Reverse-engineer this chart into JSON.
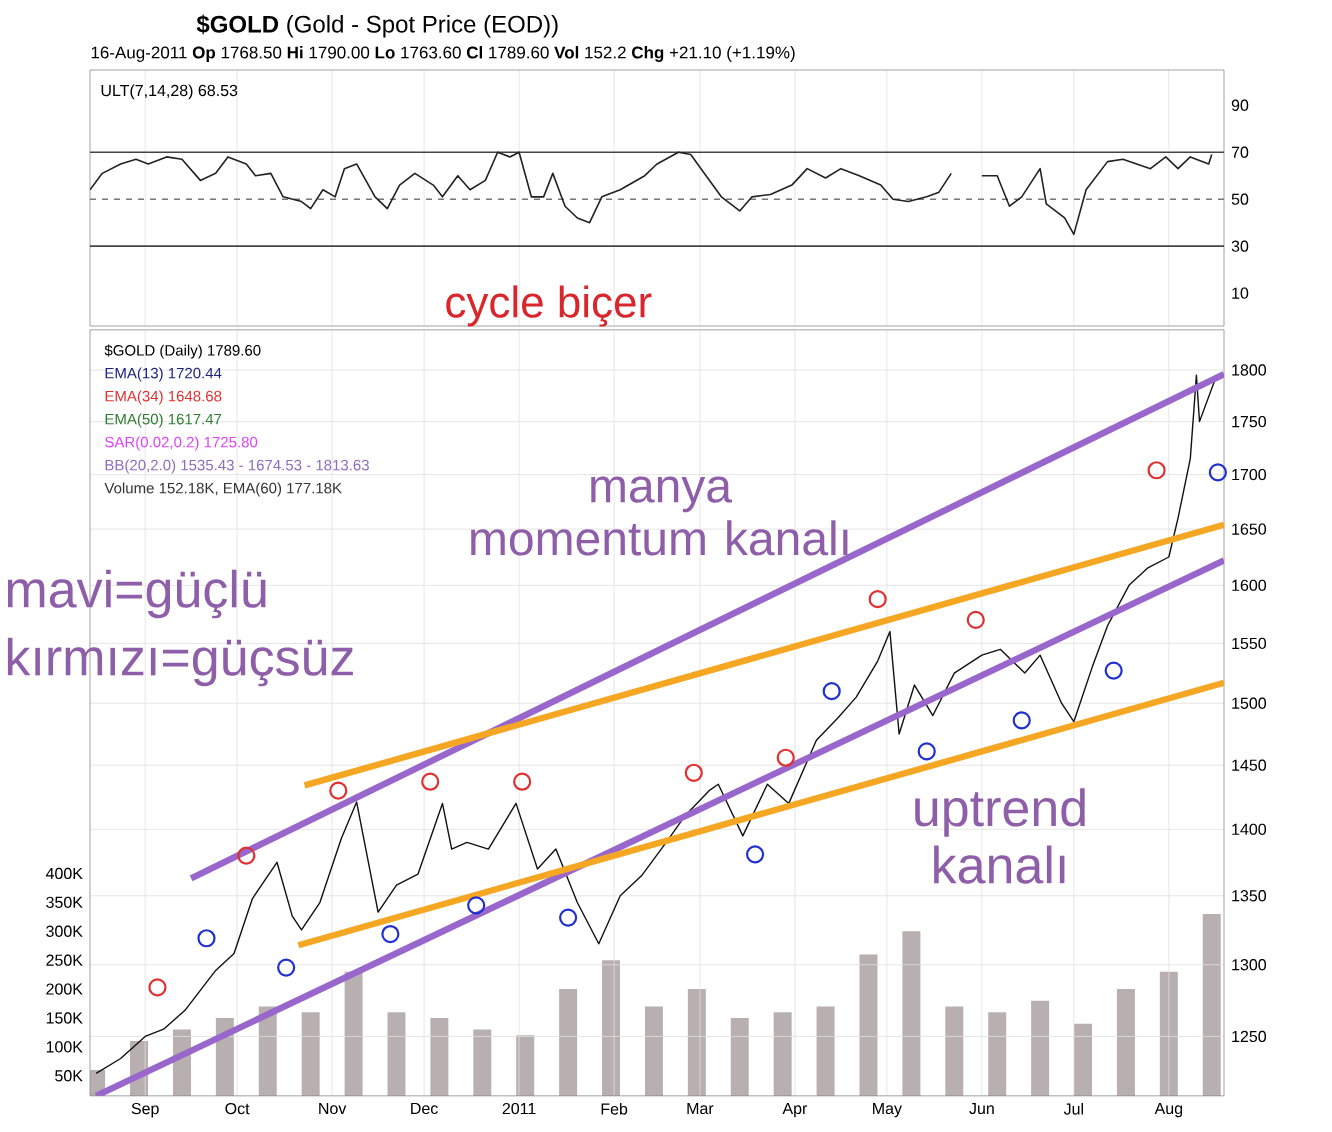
{
  "chart_data": [
    {
      "type": "line",
      "title": "**$GOLD** (Gold - Spot Price (EOD))",
      "subtitle": "16-Aug-2011   **Op** 1768.50  **Hi** 1790.00  **Lo** 1763.60  **Cl** 1789.60  **Vol** 152.2   **Chg** +21.10 (+1.19%)",
      "annotations": [
        "ULT(7,14,28) 68.53",
        "cycle biçer"
      ],
      "x": [
        "2010-08-14",
        "2010-08-18",
        "2010-08-24",
        "2010-08-29",
        "2010-09-02",
        "2010-09-08",
        "2010-09-13",
        "2010-09-19",
        "2010-09-24",
        "2010-09-28",
        "2010-10-04",
        "2010-10-07",
        "2010-10-12",
        "2010-10-16",
        "2010-10-22",
        "2010-10-25",
        "2010-10-29",
        "2010-11-02",
        "2010-11-05",
        "2010-11-09",
        "2010-11-15",
        "2010-11-19",
        "2010-11-23",
        "2010-11-28",
        "2010-12-04",
        "2010-12-07",
        "2010-12-12",
        "2010-12-16",
        "2010-12-21",
        "2010-12-25",
        "2010-12-29",
        "2011-01-01",
        "2011-01-05",
        "2011-01-09",
        "2011-01-12",
        "2011-01-16",
        "2011-01-20",
        "2011-01-24",
        "2011-01-28",
        "2011-02-03",
        "2011-02-11",
        "2011-02-15",
        "2011-02-22",
        "2011-02-26",
        "2011-03-03",
        "2011-03-08",
        "2011-03-14",
        "2011-03-18",
        "2011-03-24",
        "2011-03-31",
        "2011-04-05",
        "2011-04-11",
        "2011-04-16",
        "2011-04-22",
        "2011-04-29",
        "2011-05-03",
        "2011-05-08",
        "2011-05-14",
        "2011-05-18",
        "2011-05-22",
        "2011-05-27",
        "2011-06-01",
        "2011-06-06",
        "2011-06-10",
        "2011-06-14",
        "2011-06-20",
        "2011-06-22",
        "2011-06-28",
        "2011-07-01",
        "2011-07-05",
        "2011-07-12",
        "2011-07-17",
        "2011-07-26",
        "2011-07-31",
        "2011-08-04",
        "2011-08-08",
        "2011-08-14",
        "2011-08-15"
      ],
      "series": [
        {
          "color": "#222222",
          "values": [
            54,
            61,
            65,
            67,
            65,
            68,
            67,
            58,
            61,
            68,
            65,
            60,
            61,
            51,
            49,
            46,
            54,
            51,
            63,
            65,
            51,
            46,
            56,
            61,
            56,
            51,
            60,
            54,
            58,
            70,
            68,
            70,
            51,
            51,
            61,
            47,
            42,
            40,
            51,
            54,
            60,
            65,
            70,
            69,
            60,
            51,
            45,
            51,
            52,
            56,
            63,
            59,
            63,
            60,
            56,
            50,
            49,
            51,
            53,
            61,
            null,
            60,
            60,
            47,
            51,
            63,
            48,
            42,
            35,
            54,
            66,
            67,
            63,
            68,
            63,
            68,
            65,
            69
          ]
        }
      ],
      "xlim": [
        "2010-08-14",
        "2011-08-19"
      ],
      "xticks": [
        {
          "value": "2010-09-01",
          "label": null
        },
        {
          "value": "2010-10-01",
          "label": null
        },
        {
          "value": "2010-11-01",
          "label": null
        },
        {
          "value": "2010-12-01",
          "label": null
        },
        {
          "value": "2011-01-01",
          "label": null
        },
        {
          "value": "2011-02-01",
          "label": null
        },
        {
          "value": "2011-03-01",
          "label": null
        },
        {
          "value": "2011-04-01",
          "label": null
        },
        {
          "value": "2011-05-01",
          "label": null
        },
        {
          "value": "2011-06-01",
          "label": null
        },
        {
          "value": "2011-07-01",
          "label": null
        },
        {
          "value": "2011-08-01",
          "label": null
        }
      ],
      "ylim": [
        -4,
        105
      ],
      "yticks": [
        10,
        30,
        50,
        70,
        90
      ],
      "ref_lines": [
        {
          "axis": "y",
          "value": 70,
          "color": "#444444",
          "line_style": "solid"
        },
        {
          "axis": "y",
          "value": 50,
          "color": "#777777",
          "line_style": "dashed"
        },
        {
          "axis": "y",
          "value": 30,
          "color": "#444444",
          "line_style": "solid"
        }
      ],
      "grid": "x",
      "tick_labels": "y"
    },
    {
      "type": "line",
      "log": "y",
      "grid": true,
      "annotations": [
        "$GOLD (Daily) 1789.60",
        "EMA(13) 1720.44",
        "EMA(34) 1648.68",
        "EMA(50) 1617.47",
        "SAR(0.02,0.2) 1725.80",
        "BB(20,2.0) 1535.43 - 1674.53 - 1813.63",
        "Volume 152.18K, EMA(60) 177.18K",
        "mavi=güçlü",
        "kırmızı=güçsüz",
        "manya momentum kanalı",
        "uptrend kanalı"
      ],
      "xlim": [
        "2010-08-14",
        "2011-08-19"
      ],
      "xticks": [
        {
          "value": "2010-09-01",
          "label": "Sep"
        },
        {
          "value": "2010-10-01",
          "label": "Oct"
        },
        {
          "value": "2010-11-01",
          "label": "Nov"
        },
        {
          "value": "2010-12-01",
          "label": "Dec"
        },
        {
          "value": "2011-01-01",
          "label": "2011"
        },
        {
          "value": "2011-02-01",
          "label": "Feb"
        },
        {
          "value": "2011-03-01",
          "label": "Mar"
        },
        {
          "value": "2011-04-01",
          "label": "Apr"
        },
        {
          "value": "2011-05-01",
          "label": "May"
        },
        {
          "value": "2011-06-01",
          "label": "Jun"
        },
        {
          "value": "2011-07-01",
          "label": "Jul"
        },
        {
          "value": "2011-08-01",
          "label": "Aug"
        }
      ],
      "ylim": [
        1210,
        1840
      ],
      "yticks": [
        1250,
        1300,
        1350,
        1400,
        1450,
        1500,
        1550,
        1600,
        1650,
        1700,
        1750,
        1800
      ],
      "y2lim": [
        15000,
        1340000
      ],
      "y2ticks": [
        {
          "value": 50000,
          "label": "50K"
        },
        {
          "value": 100000,
          "label": "100K"
        },
        {
          "value": 150000,
          "label": "150K"
        },
        {
          "value": 200000,
          "label": "200K"
        },
        {
          "value": 250000,
          "label": "250K"
        },
        {
          "value": 300000,
          "label": "300K"
        },
        {
          "value": 350000,
          "label": "350K"
        },
        {
          "value": 400000,
          "label": "400K"
        }
      ],
      "series": [
        {
          "type": "bar",
          "axis": "y2",
          "color": "#b8b0b0",
          "x": [
            "2010-08-16",
            "2010-08-30",
            "2010-09-13",
            "2010-09-27",
            "2010-10-11",
            "2010-10-25",
            "2010-11-08",
            "2010-11-22",
            "2010-12-06",
            "2010-12-20",
            "2011-01-03",
            "2011-01-17",
            "2011-01-31",
            "2011-02-14",
            "2011-02-28",
            "2011-03-14",
            "2011-03-28",
            "2011-04-11",
            "2011-04-25",
            "2011-05-09",
            "2011-05-23",
            "2011-06-06",
            "2011-06-20",
            "2011-07-04",
            "2011-07-18",
            "2011-08-01",
            "2011-08-15"
          ],
          "values": [
            60000,
            110000,
            130000,
            150000,
            170000,
            160000,
            230000,
            160000,
            150000,
            130000,
            120000,
            200000,
            250000,
            170000,
            200000,
            150000,
            160000,
            170000,
            260000,
            300000,
            170000,
            160000,
            180000,
            140000,
            200000,
            230000,
            330000
          ]
        },
        {
          "type": "line",
          "color": "#111111",
          "x": [
            "2010-08-16",
            "2010-08-24",
            "2010-09-01",
            "2010-09-07",
            "2010-09-14",
            "2010-09-24",
            "2010-09-30",
            "2010-10-06",
            "2010-10-14",
            "2010-10-19",
            "2010-10-22",
            "2010-10-28",
            "2010-11-04",
            "2010-11-09",
            "2010-11-16",
            "2010-11-22",
            "2010-11-29",
            "2010-12-07",
            "2010-12-10",
            "2010-12-15",
            "2010-12-22",
            "2010-12-31",
            "2011-01-07",
            "2011-01-13",
            "2011-01-20",
            "2011-01-27",
            "2011-02-03",
            "2011-02-10",
            "2011-02-18",
            "2011-02-24",
            "2011-03-04",
            "2011-03-07",
            "2011-03-15",
            "2011-03-23",
            "2011-03-30",
            "2011-04-08",
            "2011-04-15",
            "2011-04-21",
            "2011-04-28",
            "2011-05-02",
            "2011-05-05",
            "2011-05-10",
            "2011-05-16",
            "2011-05-23",
            "2011-06-01",
            "2011-06-07",
            "2011-06-15",
            "2011-06-20",
            "2011-06-27",
            "2011-07-01",
            "2011-07-07",
            "2011-07-12",
            "2011-07-19",
            "2011-07-25",
            "2011-08-01",
            "2011-08-04",
            "2011-08-08",
            "2011-08-10",
            "2011-08-11",
            "2011-08-16"
          ],
          "values": [
            1225,
            1235,
            1250,
            1255,
            1268,
            1296,
            1308,
            1348,
            1375,
            1335,
            1325,
            1345,
            1393,
            1421,
            1338,
            1358,
            1366,
            1420,
            1385,
            1390,
            1385,
            1420,
            1370,
            1385,
            1345,
            1315,
            1350,
            1365,
            1390,
            1410,
            1430,
            1435,
            1395,
            1435,
            1420,
            1470,
            1488,
            1505,
            1535,
            1560,
            1475,
            1515,
            1490,
            1525,
            1540,
            1545,
            1525,
            1540,
            1500,
            1485,
            1530,
            1565,
            1600,
            1615,
            1625,
            1660,
            1715,
            1795,
            1750,
            1790
          ]
        },
        {
          "type": "line",
          "color": "#9966cc",
          "x": [
            "2010-09-16",
            "2011-08-19"
          ],
          "values": [
            1363,
            1796
          ]
        },
        {
          "type": "line",
          "color": "#9966cc",
          "x": [
            "2010-08-16",
            "2011-08-19"
          ],
          "values": [
            1210,
            1622
          ]
        },
        {
          "type": "line",
          "color": "#f5a623",
          "x": [
            "2010-10-23",
            "2011-08-19"
          ],
          "values": [
            1434,
            1654
          ]
        },
        {
          "type": "line",
          "color": "#f5a623",
          "x": [
            "2010-10-21",
            "2011-08-19"
          ],
          "values": [
            1314,
            1517
          ]
        },
        {
          "type": "scatter",
          "marker": "circle",
          "color": "#e03030",
          "x": [
            "2010-09-05",
            "2010-10-04",
            "2010-11-03",
            "2010-12-03",
            "2011-01-02",
            "2011-02-27",
            "2011-03-29",
            "2011-04-28",
            "2011-05-30",
            "2011-07-28"
          ],
          "values": [
            1284,
            1380,
            1430,
            1437,
            1437,
            1444,
            1456,
            1588,
            1570,
            1704
          ]
        },
        {
          "type": "scatter",
          "marker": "circle",
          "color": "#2030d0",
          "x": [
            "2010-09-21",
            "2010-10-17",
            "2010-11-20",
            "2010-12-18",
            "2011-01-17",
            "2011-03-19",
            "2011-04-13",
            "2011-05-14",
            "2011-06-14",
            "2011-07-14",
            "2011-08-17"
          ],
          "values": [
            1319,
            1298,
            1322,
            1343,
            1334,
            1381,
            1510,
            1461,
            1486,
            1527,
            1702
          ]
        }
      ]
    }
  ]
}
